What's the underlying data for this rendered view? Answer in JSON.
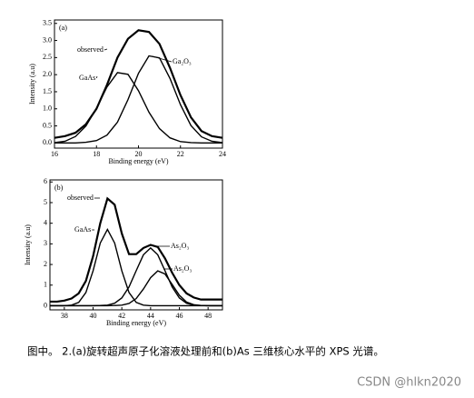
{
  "chart_data": [
    {
      "type": "line",
      "panel_label": "(a)",
      "x_label": "Binding energy (eV)",
      "y_label": "Intensity (a.u)",
      "x": [
        16,
        16.5,
        17,
        17.5,
        18,
        18.5,
        19,
        19.5,
        20,
        20.5,
        21,
        21.5,
        22,
        22.5,
        23,
        23.5,
        24
      ],
      "series": [
        {
          "name": "observed",
          "color": "#000000",
          "values": [
            0.15,
            0.2,
            0.3,
            0.55,
            1.0,
            1.7,
            2.5,
            3.05,
            3.3,
            3.25,
            2.9,
            2.2,
            1.4,
            0.75,
            0.35,
            0.2,
            0.15
          ]
        },
        {
          "name": "GaAs",
          "color": "#000000",
          "values": [
            0.01,
            0.05,
            0.19,
            0.5,
            1.02,
            1.64,
            2.06,
            2.01,
            1.53,
            0.9,
            0.42,
            0.15,
            0.04,
            0.01,
            0,
            0,
            0
          ]
        },
        {
          "name": "Ga₂O₃",
          "color": "#000000",
          "values": [
            0,
            0,
            0,
            0.02,
            0.07,
            0.23,
            0.61,
            1.27,
            2.04,
            2.55,
            2.49,
            1.89,
            1.12,
            0.51,
            0.18,
            0.05,
            0.01
          ]
        }
      ],
      "xlim": [
        16,
        24
      ],
      "ylim": [
        -0.15,
        3.6
      ],
      "xticks": [
        16,
        18,
        20,
        22,
        24
      ],
      "yticks": [
        {
          "value": 0,
          "label": "0.0"
        },
        0.5,
        {
          "value": 1,
          "label": "1.0"
        },
        1.5,
        {
          "value": 2,
          "label": "2.0"
        },
        2.5,
        {
          "value": 3,
          "label": "3.0"
        },
        3.5
      ]
    },
    {
      "type": "line",
      "panel_label": "(b)",
      "x_label": "Binding energy (eV)",
      "y_label": "Intensity (a.u)",
      "x": [
        37,
        37.5,
        38,
        38.5,
        39,
        39.5,
        40,
        40.5,
        41,
        41.5,
        42,
        42.5,
        43,
        43.5,
        44,
        44.5,
        45,
        45.5,
        46,
        46.5,
        47,
        47.5,
        48,
        48.5,
        49
      ],
      "series": [
        {
          "name": "observed",
          "color": "#000000",
          "values": [
            0.2,
            0.2,
            0.25,
            0.35,
            0.6,
            1.2,
            2.4,
            4.0,
            5.2,
            4.9,
            3.5,
            2.5,
            2.5,
            2.8,
            2.95,
            2.85,
            2.3,
            1.6,
            1.0,
            0.6,
            0.4,
            0.3,
            0.3,
            0.3,
            0.3
          ]
        },
        {
          "name": "GaAs",
          "color": "#000000",
          "values": [
            0,
            0,
            0,
            0.03,
            0.16,
            0.64,
            1.69,
            3.04,
            3.7,
            3.04,
            1.69,
            0.64,
            0.16,
            0.03,
            0,
            0,
            0,
            0,
            0,
            0,
            0,
            0,
            0,
            0,
            0
          ]
        },
        {
          "name": "As₂O₃",
          "color": "#000000",
          "values": [
            0,
            0,
            0,
            0,
            0,
            0,
            0,
            0.01,
            0.03,
            0.12,
            0.38,
            0.91,
            1.7,
            2.47,
            2.8,
            2.47,
            1.7,
            0.91,
            0.38,
            0.12,
            0.03,
            0.01,
            0,
            0,
            0
          ]
        },
        {
          "name": "As₂O₃",
          "color": "#000000",
          "values": [
            0,
            0,
            0,
            0,
            0,
            0,
            0,
            0,
            0,
            0.01,
            0.03,
            0.11,
            0.35,
            0.81,
            1.36,
            1.69,
            1.54,
            1.03,
            0.51,
            0.18,
            0.05,
            0.01,
            0,
            0,
            0
          ]
        }
      ],
      "xlim": [
        37,
        49
      ],
      "ylim": [
        -0.2,
        6.1
      ],
      "xticks": [
        38,
        40,
        42,
        44,
        46,
        48
      ],
      "yticks": [
        0,
        1,
        2,
        3,
        4,
        5,
        6
      ]
    }
  ],
  "caption": "图中。 2.(a)旋转超声原子化溶液处理前和(b)As 三维核心水平的 XPS 光谱。",
  "watermark": "CSDN @hlkn2020"
}
